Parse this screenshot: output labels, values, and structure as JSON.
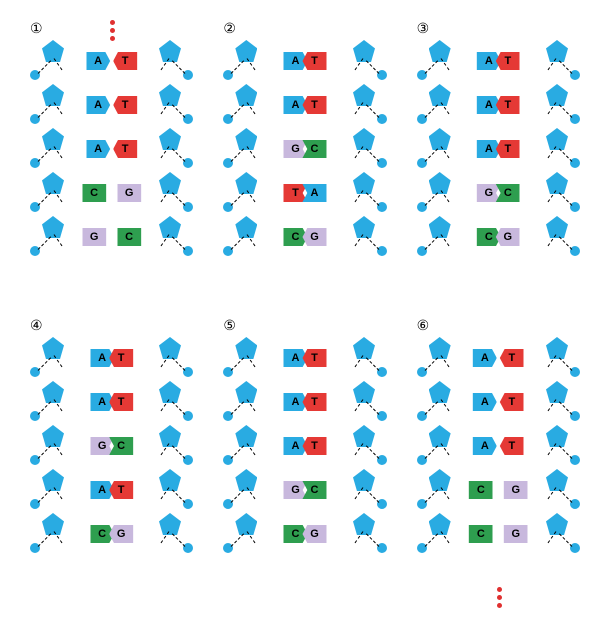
{
  "colors": {
    "backbone": "#29abe2",
    "A": "#29abe2",
    "T": "#e53935",
    "G": "#c8b8dd",
    "C": "#2e9e4f",
    "dots": "#e03030"
  },
  "num_rows": 5,
  "panels": [
    {
      "id": 1,
      "label": "①",
      "dots_top": true,
      "pairs": [
        {
          "l": "A",
          "r": "T",
          "gap": true,
          "shape": "point"
        },
        {
          "l": "A",
          "r": "T",
          "gap": true,
          "shape": "point"
        },
        {
          "l": "A",
          "r": "T",
          "gap": true,
          "shape": "point"
        },
        {
          "l": "C",
          "r": "G",
          "gap": true,
          "shape": "flat"
        },
        {
          "l": "G",
          "r": "C",
          "gap": true,
          "shape": "flat"
        }
      ]
    },
    {
      "id": 2,
      "label": "②",
      "pairs": [
        {
          "l": "A",
          "r": "T",
          "gap": false,
          "shape": "point"
        },
        {
          "l": "A",
          "r": "T",
          "gap": false,
          "shape": "point"
        },
        {
          "l": "G",
          "r": "C",
          "gap": false,
          "shape": "notch"
        },
        {
          "l": "T",
          "r": "A",
          "gap": false,
          "shape": "notch"
        },
        {
          "l": "C",
          "r": "G",
          "gap": false,
          "shape": "point"
        }
      ]
    },
    {
      "id": 3,
      "label": "③",
      "pairs": [
        {
          "l": "A",
          "r": "T",
          "gap": false,
          "shape": "point"
        },
        {
          "l": "A",
          "r": "T",
          "gap": false,
          "shape": "point"
        },
        {
          "l": "A",
          "r": "T",
          "gap": false,
          "shape": "point"
        },
        {
          "l": "G",
          "r": "C",
          "gap": false,
          "shape": "notch"
        },
        {
          "l": "C",
          "r": "G",
          "gap": false,
          "shape": "point"
        }
      ]
    },
    {
      "id": 4,
      "label": "④",
      "pairs": [
        {
          "l": "A",
          "r": "T",
          "gap": false,
          "shape": "point"
        },
        {
          "l": "A",
          "r": "T",
          "gap": false,
          "shape": "point"
        },
        {
          "l": "G",
          "r": "C",
          "gap": false,
          "shape": "notch"
        },
        {
          "l": "A",
          "r": "T",
          "gap": false,
          "shape": "point"
        },
        {
          "l": "C",
          "r": "G",
          "gap": false,
          "shape": "point"
        }
      ]
    },
    {
      "id": 5,
      "label": "⑤",
      "pairs": [
        {
          "l": "A",
          "r": "T",
          "gap": false,
          "shape": "point"
        },
        {
          "l": "A",
          "r": "T",
          "gap": false,
          "shape": "point"
        },
        {
          "l": "A",
          "r": "T",
          "gap": false,
          "shape": "point"
        },
        {
          "l": "G",
          "r": "C",
          "gap": false,
          "shape": "notch"
        },
        {
          "l": "C",
          "r": "G",
          "gap": false,
          "shape": "point"
        }
      ]
    },
    {
      "id": 6,
      "label": "⑥",
      "dots_bottom": true,
      "pairs": [
        {
          "l": "A",
          "r": "T",
          "gap": true,
          "shape": "point"
        },
        {
          "l": "A",
          "r": "T",
          "gap": true,
          "shape": "point"
        },
        {
          "l": "A",
          "r": "T",
          "gap": true,
          "shape": "point"
        },
        {
          "l": "C",
          "r": "G",
          "gap": true,
          "shape": "flat"
        },
        {
          "l": "C",
          "r": "G",
          "gap": true,
          "shape": "flat"
        }
      ]
    }
  ]
}
